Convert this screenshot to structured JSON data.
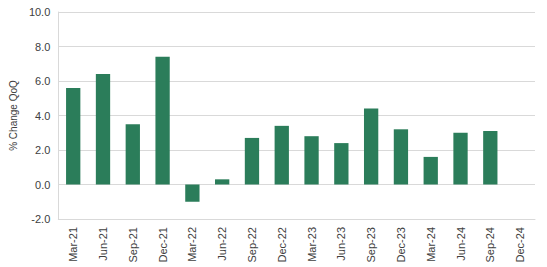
{
  "chart_data": {
    "type": "bar",
    "y_label": "% Change QoQ",
    "categories": [
      "Mar-21",
      "Jun-21",
      "Sep-21",
      "Dec-21",
      "Mar-22",
      "Jun-22",
      "Sep-22",
      "Dec-22",
      "Mar-23",
      "Jun-23",
      "Sep-23",
      "Dec-23",
      "Mar-24",
      "Jun-24",
      "Sep-24",
      "Dec-24"
    ],
    "values": [
      5.6,
      6.4,
      3.5,
      7.4,
      -1.0,
      0.3,
      2.7,
      3.4,
      2.8,
      2.4,
      4.4,
      3.2,
      1.6,
      3.0,
      3.1,
      null
    ],
    "color": "#2b7d5a",
    "ylim": [
      -2,
      10
    ],
    "yticks": [
      {
        "value": -2,
        "label": "-2.0"
      },
      {
        "value": 0,
        "label": "0.0"
      },
      {
        "value": 2,
        "label": "2.0"
      },
      {
        "value": 4,
        "label": "4.0"
      },
      {
        "value": 6,
        "label": "6.0"
      },
      {
        "value": 8,
        "label": "8.0"
      },
      {
        "value": 10,
        "label": "10.0"
      }
    ],
    "grid": true
  }
}
